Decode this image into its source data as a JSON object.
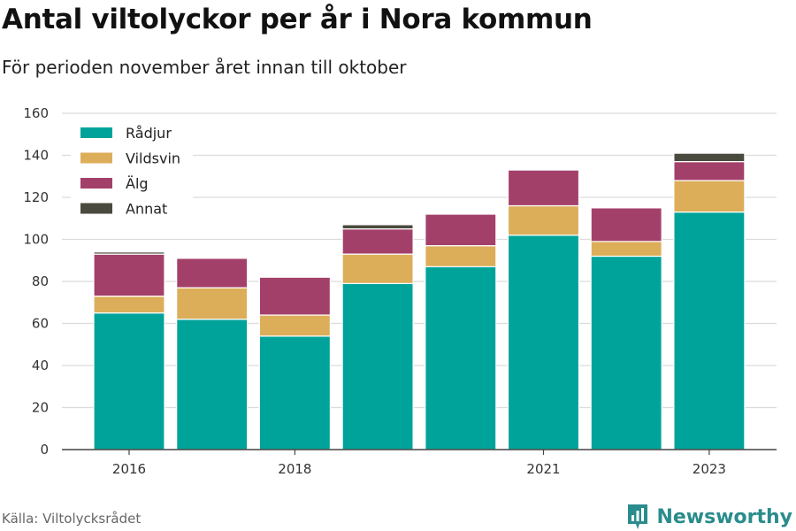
{
  "header": {
    "title": "Antal viltolyckor per år i Nora kommun",
    "subtitle": "För perioden november året innan till oktober"
  },
  "footer": {
    "source": "Källa: Viltolycksrådet",
    "brand": "Newsworthy",
    "brand_icon": "bar-chart-logo-icon"
  },
  "colors": {
    "Rådjur": "#00a39a",
    "Vildsvin": "#dcae5a",
    "Älg": "#a3406a",
    "Annat": "#4a4a3e",
    "brand": "#2a8c8c"
  },
  "chart_data": {
    "type": "bar",
    "stacked": true,
    "categories": [
      "2016",
      "2017",
      "2018",
      "2019",
      "2020",
      "2021",
      "2022",
      "2023"
    ],
    "x_tick_labels": [
      "2016",
      "",
      "2018",
      "",
      "",
      "2021",
      "",
      "2023"
    ],
    "series": [
      {
        "name": "Rådjur",
        "values": [
          65,
          62,
          54,
          79,
          87,
          102,
          92,
          113
        ]
      },
      {
        "name": "Vildsvin",
        "values": [
          8,
          15,
          10,
          14,
          10,
          14,
          7,
          15
        ]
      },
      {
        "name": "Älg",
        "values": [
          20,
          14,
          18,
          12,
          15,
          17,
          16,
          9
        ]
      },
      {
        "name": "Annat",
        "values": [
          1,
          0,
          0,
          2,
          0,
          0,
          0,
          4
        ]
      }
    ],
    "ylim": [
      0,
      160
    ],
    "yticks": [
      0,
      20,
      40,
      60,
      80,
      100,
      120,
      140,
      160
    ],
    "grid": true,
    "legend_position": "top-left"
  }
}
